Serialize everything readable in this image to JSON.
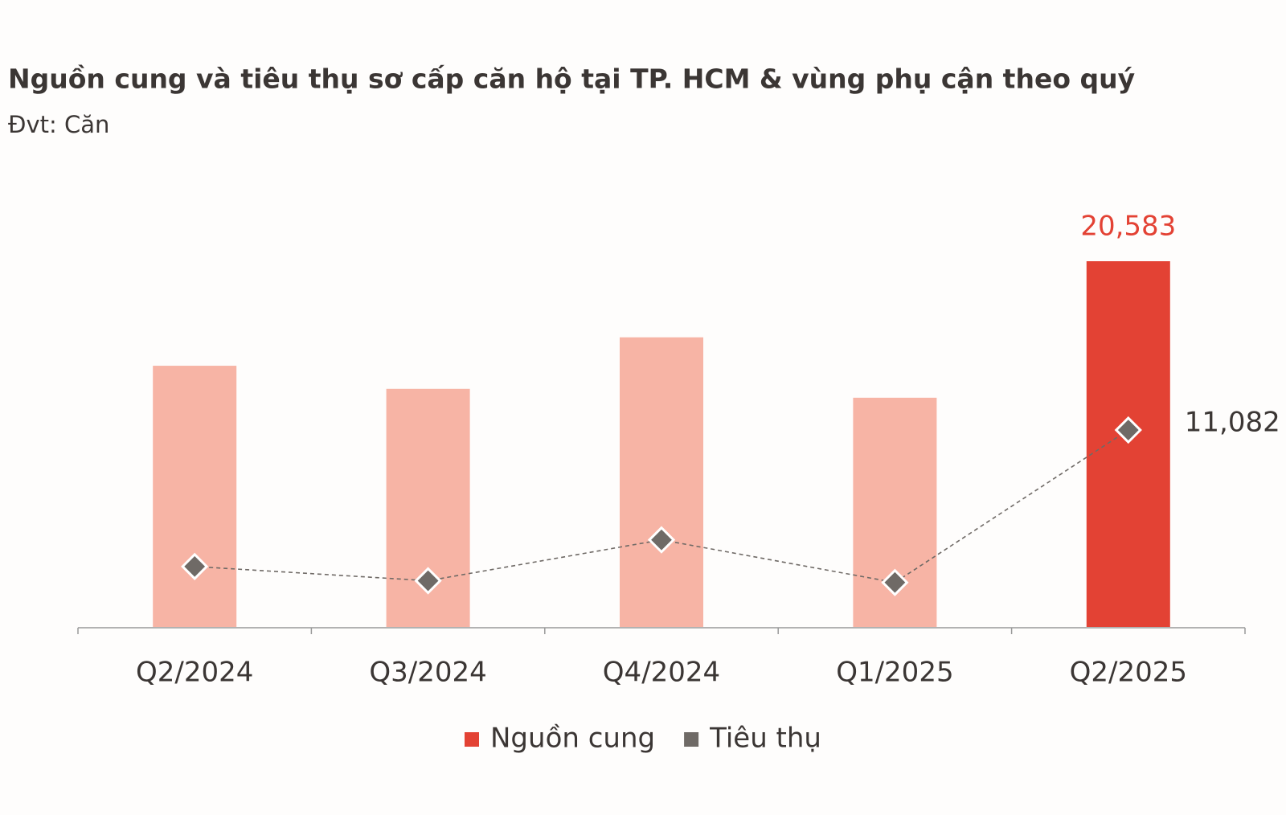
{
  "chart_data": {
    "type": "bar_line",
    "title": "Nguồn cung và tiêu thụ sơ cấp căn hộ tại TP. HCM & vùng phụ cận theo quý",
    "subtitle": "Đvt: Căn",
    "categories": [
      "Q2/2024",
      "Q3/2024",
      "Q4/2024",
      "Q1/2025",
      "Q2/2025"
    ],
    "series": [
      {
        "name": "Nguồn cung",
        "type": "bar",
        "color": "#e34234",
        "bar_colors": [
          "#f7b4a5",
          "#f7b4a5",
          "#f7b4a5",
          "#f7b4a5",
          "#e34234"
        ],
        "values": [
          14700,
          13400,
          16300,
          12900,
          20583
        ],
        "value_labels": [
          null,
          null,
          null,
          null,
          "20,583"
        ]
      },
      {
        "name": "Tiêu thụ",
        "type": "line",
        "color": "#6f6a66",
        "values": [
          3400,
          2600,
          4900,
          2500,
          11082
        ],
        "value_labels": [
          null,
          null,
          null,
          null,
          "11,082"
        ]
      }
    ],
    "ylim": [
      0,
      24000
    ],
    "legend": "bottom"
  }
}
